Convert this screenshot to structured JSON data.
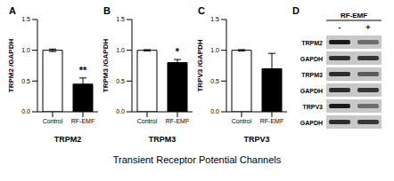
{
  "chart_data": [
    {
      "type": "bar",
      "panel": "A",
      "xlabel": "TRPM2",
      "ylabel": "TRPM2 /GAPDH",
      "categories": [
        "Control",
        "RF-EMF"
      ],
      "values": [
        1.0,
        0.45
      ],
      "errors": [
        0.02,
        0.1
      ],
      "colors": [
        "#ffffff",
        "#000000"
      ],
      "ylim": [
        0,
        1.5
      ],
      "yticks": [
        {
          "value": 0,
          "label": "0.0"
        },
        {
          "value": 0.5,
          "label": "0.5"
        },
        {
          "value": 1,
          "label": "1.0"
        },
        {
          "value": 1.5,
          "label": "1.5"
        }
      ],
      "annotations": [
        {
          "category": "RF-EMF",
          "text": "**"
        }
      ]
    },
    {
      "type": "bar",
      "panel": "B",
      "xlabel": "TRPM3",
      "ylabel": "TRPM3 /GAPDH",
      "categories": [
        "Control",
        "RF-EMF"
      ],
      "values": [
        1.0,
        0.8
      ],
      "errors": [
        0.01,
        0.05
      ],
      "colors": [
        "#ffffff",
        "#000000"
      ],
      "ylim": [
        0,
        1.5
      ],
      "yticks": [
        {
          "value": 0,
          "label": "0.0"
        },
        {
          "value": 0.5,
          "label": "0.5"
        },
        {
          "value": 1,
          "label": "1.0"
        },
        {
          "value": 1.5,
          "label": "1.5"
        }
      ],
      "annotations": [
        {
          "category": "RF-EMF",
          "text": "*"
        }
      ]
    },
    {
      "type": "bar",
      "panel": "C",
      "xlabel": "TRPV3",
      "ylabel": "TRPV3 /GAPDH",
      "categories": [
        "Control",
        "RF-EMF"
      ],
      "values": [
        1.0,
        0.7
      ],
      "errors": [
        0.01,
        0.25
      ],
      "colors": [
        "#ffffff",
        "#000000"
      ],
      "ylim": [
        0,
        1.5
      ],
      "yticks": [
        {
          "value": 0,
          "label": "0.0"
        },
        {
          "value": 0.5,
          "label": "0.5"
        },
        {
          "value": 1,
          "label": "1.0"
        },
        {
          "value": 1.5,
          "label": "1.5"
        }
      ],
      "annotations": []
    }
  ],
  "panel_d": {
    "panel": "D",
    "header": "RF-EMF",
    "lanes": [
      "-",
      "+"
    ],
    "rows": [
      "TRPM2",
      "GAPDH",
      "TRPM3",
      "GAPDH",
      "TRPV3",
      "GAPDH"
    ]
  },
  "caption": "Transient Receptor Potential Channels"
}
